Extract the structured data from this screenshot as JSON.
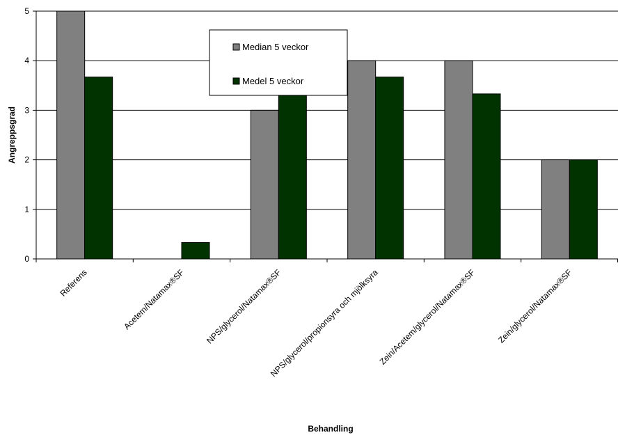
{
  "chart_data": {
    "type": "bar",
    "title": "",
    "xlabel": "Behandling",
    "ylabel": "Angreppsgrad",
    "ylim": [
      0,
      5
    ],
    "yticks": [
      "0",
      "1",
      "2",
      "3",
      "4",
      "5"
    ],
    "grid": true,
    "legend_position": "top-center",
    "categories": [
      "Referens",
      "Acetem/Natamax®SF",
      "NPS/glycerol/Natamax®SF",
      "NPS/glycerol/propionsyra och mjölksyra",
      "Zein/Acetem/glycerol/Natamax®SF",
      "Zein/glycerol/Natamax®SF"
    ],
    "series": [
      {
        "name": "Median 5 veckor",
        "color": "#808080",
        "values": [
          5,
          0,
          3,
          4,
          4,
          2
        ]
      },
      {
        "name": "Medel 5 veckor",
        "color": "#003300",
        "values": [
          3.67,
          0.33,
          3.33,
          3.67,
          3.33,
          2
        ]
      }
    ]
  }
}
